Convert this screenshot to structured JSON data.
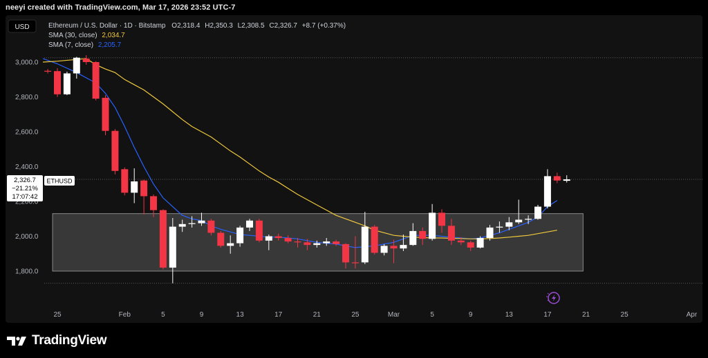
{
  "header": {
    "credit": "neeyi created with TradingView.com, Mar 17, 2026 23:52 UTC-7"
  },
  "toolbar": {
    "currency_button": "USD"
  },
  "legend": {
    "symbol_line": "Ethereum / U.S. Dollar · 1D · Bitstamp",
    "ohlc": {
      "o_label": "O",
      "o_value": "2,318.4",
      "h_label": "H",
      "h_value": "2,350.3",
      "l_label": "L",
      "l_value": "2,308.5",
      "c_label": "C",
      "c_value": "2,326.7",
      "change": "+8.7 (+0.37%)"
    },
    "sma30_label": "SMA (30, close)",
    "sma30_value": "2,034.7",
    "sma7_label": "SMA (7, close)",
    "sma7_value": "2,205.7"
  },
  "price_tag": {
    "price": "2,326.7",
    "change_pct": "−21.21%",
    "countdown": "17:07:42",
    "symbol": "ETHUSD"
  },
  "footer": {
    "brand": "TradingView",
    "logo_icon": "tradingview-logo-icon"
  },
  "chart_data": {
    "type": "candlestick",
    "symbol": "ETHUSD",
    "ylim": [
      1715,
      3080
    ],
    "y_ticks": [
      1800,
      2000,
      2200,
      2400,
      2600,
      2800,
      3000
    ],
    "y_tick_labels": [
      "1,800.0",
      "2,000.0",
      "2,200.0",
      "2,400.0",
      "2,600.0",
      "2,800.0",
      "3,000.0"
    ],
    "x_ticks": [
      {
        "day": 0,
        "label": "25"
      },
      {
        "day": 7,
        "label": "Feb"
      },
      {
        "day": 11,
        "label": "5"
      },
      {
        "day": 15,
        "label": "9"
      },
      {
        "day": 19,
        "label": "13"
      },
      {
        "day": 23,
        "label": "17"
      },
      {
        "day": 27,
        "label": "21"
      },
      {
        "day": 31,
        "label": "25"
      },
      {
        "day": 35,
        "label": "Mar"
      },
      {
        "day": 39,
        "label": "5"
      },
      {
        "day": 43,
        "label": "9"
      },
      {
        "day": 47,
        "label": "13"
      },
      {
        "day": 51,
        "label": "17"
      },
      {
        "day": 55,
        "label": "21"
      },
      {
        "day": 59,
        "label": "25"
      },
      {
        "day": 66,
        "label": "Apr"
      }
    ],
    "dotted_levels": [
      3025,
      2326.7,
      1730
    ],
    "highlight_box": {
      "day_from": -0.5,
      "day_to": 54.7,
      "price_low": 1800,
      "price_high": 2130
    },
    "candles": [
      {
        "day": -1,
        "o": 2950,
        "h": 2960,
        "l": 2935,
        "c": 2945
      },
      {
        "day": 0,
        "o": 2948,
        "h": 2965,
        "l": 2800,
        "c": 2815
      },
      {
        "day": 1,
        "o": 2815,
        "h": 2945,
        "l": 2810,
        "c": 2935
      },
      {
        "day": 2,
        "o": 2935,
        "h": 3030,
        "l": 2905,
        "c": 3025
      },
      {
        "day": 3,
        "o": 3020,
        "h": 3040,
        "l": 2985,
        "c": 3000
      },
      {
        "day": 4,
        "o": 3000,
        "h": 3005,
        "l": 2780,
        "c": 2790
      },
      {
        "day": 5,
        "o": 2795,
        "h": 2810,
        "l": 2580,
        "c": 2605
      },
      {
        "day": 6,
        "o": 2605,
        "h": 2615,
        "l": 2355,
        "c": 2375
      },
      {
        "day": 7,
        "o": 2385,
        "h": 2395,
        "l": 2235,
        "c": 2250
      },
      {
        "day": 8,
        "o": 2250,
        "h": 2390,
        "l": 2190,
        "c": 2315
      },
      {
        "day": 9,
        "o": 2320,
        "h": 2325,
        "l": 2125,
        "c": 2230
      },
      {
        "day": 10,
        "o": 2230,
        "h": 2240,
        "l": 2110,
        "c": 2150
      },
      {
        "day": 11,
        "o": 2150,
        "h": 2155,
        "l": 1810,
        "c": 1820
      },
      {
        "day": 12,
        "o": 1820,
        "h": 2105,
        "l": 1730,
        "c": 2055
      },
      {
        "day": 13,
        "o": 2055,
        "h": 2095,
        "l": 2025,
        "c": 2070
      },
      {
        "day": 14,
        "o": 2070,
        "h": 2115,
        "l": 2050,
        "c": 2075
      },
      {
        "day": 15,
        "o": 2075,
        "h": 2135,
        "l": 2060,
        "c": 2090
      },
      {
        "day": 16,
        "o": 2090,
        "h": 2100,
        "l": 2005,
        "c": 2020
      },
      {
        "day": 17,
        "o": 2020,
        "h": 2030,
        "l": 1935,
        "c": 1945
      },
      {
        "day": 18,
        "o": 1945,
        "h": 2005,
        "l": 1900,
        "c": 1960
      },
      {
        "day": 19,
        "o": 1960,
        "h": 2060,
        "l": 1940,
        "c": 2050
      },
      {
        "day": 20,
        "o": 2050,
        "h": 2100,
        "l": 2030,
        "c": 2090
      },
      {
        "day": 21,
        "o": 2090,
        "h": 2100,
        "l": 1965,
        "c": 1975
      },
      {
        "day": 22,
        "o": 1975,
        "h": 2010,
        "l": 1920,
        "c": 2000
      },
      {
        "day": 23,
        "o": 2000,
        "h": 2015,
        "l": 1975,
        "c": 1990
      },
      {
        "day": 24,
        "o": 1990,
        "h": 2005,
        "l": 1960,
        "c": 1970
      },
      {
        "day": 25,
        "o": 1970,
        "h": 1990,
        "l": 1935,
        "c": 1965
      },
      {
        "day": 26,
        "o": 1965,
        "h": 1985,
        "l": 1920,
        "c": 1950
      },
      {
        "day": 27,
        "o": 1950,
        "h": 1975,
        "l": 1935,
        "c": 1960
      },
      {
        "day": 28,
        "o": 1960,
        "h": 1990,
        "l": 1945,
        "c": 1970
      },
      {
        "day": 29,
        "o": 1970,
        "h": 1980,
        "l": 1945,
        "c": 1955
      },
      {
        "day": 30,
        "o": 1955,
        "h": 1960,
        "l": 1815,
        "c": 1850
      },
      {
        "day": 31,
        "o": 1850,
        "h": 2000,
        "l": 1815,
        "c": 1845
      },
      {
        "day": 32,
        "o": 1850,
        "h": 2140,
        "l": 1840,
        "c": 2055
      },
      {
        "day": 33,
        "o": 2055,
        "h": 2065,
        "l": 1895,
        "c": 1905
      },
      {
        "day": 34,
        "o": 1905,
        "h": 1955,
        "l": 1890,
        "c": 1945
      },
      {
        "day": 35,
        "o": 1945,
        "h": 1980,
        "l": 1845,
        "c": 1930
      },
      {
        "day": 36,
        "o": 1930,
        "h": 2010,
        "l": 1915,
        "c": 1950
      },
      {
        "day": 37,
        "o": 1950,
        "h": 2075,
        "l": 1945,
        "c": 2030
      },
      {
        "day": 38,
        "o": 2030,
        "h": 2050,
        "l": 1950,
        "c": 1985
      },
      {
        "day": 39,
        "o": 1985,
        "h": 2185,
        "l": 1975,
        "c": 2135
      },
      {
        "day": 40,
        "o": 2135,
        "h": 2155,
        "l": 2020,
        "c": 2060
      },
      {
        "day": 41,
        "o": 2060,
        "h": 2100,
        "l": 1950,
        "c": 1975
      },
      {
        "day": 42,
        "o": 1975,
        "h": 1995,
        "l": 1950,
        "c": 1965
      },
      {
        "day": 43,
        "o": 1965,
        "h": 1975,
        "l": 1915,
        "c": 1935
      },
      {
        "day": 44,
        "o": 1935,
        "h": 2000,
        "l": 1930,
        "c": 1990
      },
      {
        "day": 45,
        "o": 1990,
        "h": 2065,
        "l": 1975,
        "c": 2050
      },
      {
        "day": 46,
        "o": 2050,
        "h": 2085,
        "l": 2020,
        "c": 2055
      },
      {
        "day": 47,
        "o": 2055,
        "h": 2110,
        "l": 2035,
        "c": 2080
      },
      {
        "day": 48,
        "o": 2080,
        "h": 2210,
        "l": 2070,
        "c": 2095
      },
      {
        "day": 49,
        "o": 2095,
        "h": 2120,
        "l": 2070,
        "c": 2100
      },
      {
        "day": 50,
        "o": 2100,
        "h": 2180,
        "l": 2095,
        "c": 2170
      },
      {
        "day": 51,
        "o": 2170,
        "h": 2385,
        "l": 2160,
        "c": 2345
      },
      {
        "day": 52,
        "o": 2345,
        "h": 2365,
        "l": 2305,
        "c": 2320
      },
      {
        "day": 53,
        "o": 2318.4,
        "h": 2350.3,
        "l": 2308.5,
        "c": 2326.7
      }
    ],
    "series": [
      {
        "name": "SMA (7, close)",
        "color": "#2962ff",
        "points": [
          [
            -1.5,
            3020
          ],
          [
            0,
            2990
          ],
          [
            2,
            2940
          ],
          [
            4,
            2880
          ],
          [
            5,
            2820
          ],
          [
            6,
            2740
          ],
          [
            7,
            2630
          ],
          [
            8,
            2510
          ],
          [
            9,
            2400
          ],
          [
            10,
            2300
          ],
          [
            11,
            2220
          ],
          [
            12,
            2170
          ],
          [
            13,
            2120
          ],
          [
            14,
            2100
          ],
          [
            15,
            2090
          ],
          [
            16,
            2060
          ],
          [
            17,
            2040
          ],
          [
            18,
            2025
          ],
          [
            19,
            2010
          ],
          [
            20,
            2005
          ],
          [
            21,
            2000
          ],
          [
            22,
            1995
          ],
          [
            23,
            1995
          ],
          [
            24,
            1990
          ],
          [
            25,
            1985
          ],
          [
            26,
            1975
          ],
          [
            27,
            1965
          ],
          [
            28,
            1960
          ],
          [
            29,
            1955
          ],
          [
            30,
            1945
          ],
          [
            31,
            1935
          ],
          [
            32,
            1940
          ],
          [
            33,
            1945
          ],
          [
            34,
            1955
          ],
          [
            35,
            1965
          ],
          [
            36,
            1985
          ],
          [
            37,
            2005
          ],
          [
            38,
            2005
          ],
          [
            39,
            2005
          ],
          [
            40,
            2000
          ],
          [
            41,
            1995
          ],
          [
            42,
            1990
          ],
          [
            43,
            1985
          ],
          [
            44,
            1990
          ],
          [
            45,
            2005
          ],
          [
            46,
            2020
          ],
          [
            47,
            2040
          ],
          [
            48,
            2060
          ],
          [
            49,
            2080
          ],
          [
            50,
            2110
          ],
          [
            51,
            2170
          ],
          [
            52,
            2205.7
          ]
        ]
      },
      {
        "name": "SMA (30, close)",
        "color": "#f0c93c",
        "points": [
          [
            -1.5,
            3000
          ],
          [
            0,
            3005
          ],
          [
            2,
            3015
          ],
          [
            3,
            3020
          ],
          [
            4,
            2985
          ],
          [
            5,
            2960
          ],
          [
            6,
            2940
          ],
          [
            7,
            2900
          ],
          [
            8,
            2870
          ],
          [
            9,
            2840
          ],
          [
            10,
            2800
          ],
          [
            11,
            2760
          ],
          [
            12,
            2715
          ],
          [
            13,
            2670
          ],
          [
            14,
            2630
          ],
          [
            15,
            2600
          ],
          [
            16,
            2570
          ],
          [
            17,
            2530
          ],
          [
            18,
            2490
          ],
          [
            19,
            2455
          ],
          [
            20,
            2415
          ],
          [
            21,
            2375
          ],
          [
            22,
            2340
          ],
          [
            23,
            2310
          ],
          [
            24,
            2275
          ],
          [
            25,
            2240
          ],
          [
            26,
            2210
          ],
          [
            27,
            2180
          ],
          [
            28,
            2150
          ],
          [
            29,
            2120
          ],
          [
            30,
            2100
          ],
          [
            31,
            2080
          ],
          [
            32,
            2060
          ],
          [
            33,
            2035
          ],
          [
            34,
            2020
          ],
          [
            35,
            2005
          ],
          [
            36,
            2000
          ],
          [
            37,
            1995
          ],
          [
            38,
            1993
          ],
          [
            39,
            1990
          ],
          [
            40,
            1990
          ],
          [
            41,
            1988
          ],
          [
            42,
            1987
          ],
          [
            43,
            1985
          ],
          [
            44,
            1985
          ],
          [
            45,
            1987
          ],
          [
            46,
            1990
          ],
          [
            47,
            1995
          ],
          [
            48,
            2000
          ],
          [
            49,
            2005
          ],
          [
            50,
            2015
          ],
          [
            51,
            2025
          ],
          [
            52,
            2034.7
          ]
        ]
      }
    ]
  }
}
